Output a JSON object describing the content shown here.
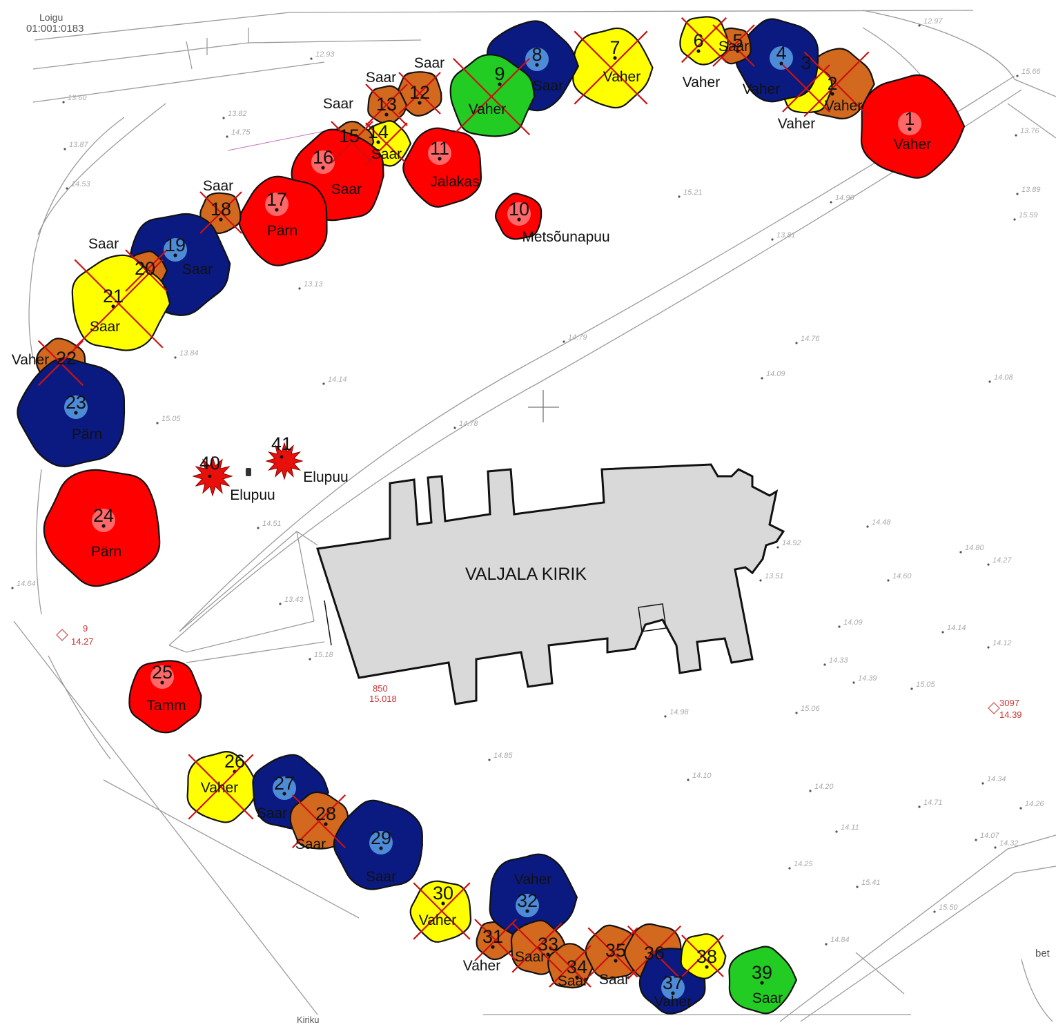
{
  "colors": {
    "red": "#ff0000",
    "blue": "#0a1a80",
    "yellow": "#ffff00",
    "green": "#22cc22",
    "brown": "#d2691e",
    "cross": "#cc1111",
    "church_fill": "#d9d9d9"
  },
  "plan": {
    "parcel_label": "Loigu",
    "parcel_id": "01:001:0183",
    "church_name": "VALJALA KIRIK",
    "road_label_bottom": "Kiriku",
    "road_label_right": "bet",
    "point_3097": "3097",
    "point_3097_h": "14.39",
    "point_9": "9",
    "point_9_h": "14.27",
    "point_850": "850",
    "point_850_h": "15.018"
  },
  "trees": [
    {
      "id": "1",
      "num": "1",
      "species": "Vaher",
      "color": "red",
      "crossed": false,
      "extra": []
    },
    {
      "id": "2",
      "num": "2",
      "species": "Vaher",
      "color": "brown",
      "crossed": true,
      "extra": []
    },
    {
      "id": "3",
      "num": "3",
      "species": "Vaher",
      "color": "yellow",
      "crossed": true,
      "extra": []
    },
    {
      "id": "4",
      "num": "4",
      "species": "Vaher",
      "color": "blue",
      "crossed": false,
      "extra": []
    },
    {
      "id": "5",
      "num": "5",
      "species": "Saar",
      "color": "brown",
      "crossed": true,
      "extra": []
    },
    {
      "id": "6",
      "num": "6",
      "species": "Vaher",
      "color": "yellow",
      "crossed": true,
      "extra": []
    },
    {
      "id": "7",
      "num": "7",
      "species": "Vaher",
      "color": "yellow",
      "crossed": true,
      "extra": []
    },
    {
      "id": "8",
      "num": "8",
      "species": "Saar",
      "color": "blue",
      "crossed": false,
      "extra": []
    },
    {
      "id": "9",
      "num": "9",
      "species": "Vaher",
      "color": "green",
      "crossed": true,
      "extra": []
    },
    {
      "id": "10",
      "num": "10",
      "species": "Metsõunapuu",
      "color": "red",
      "crossed": false,
      "extra": []
    },
    {
      "id": "11",
      "num": "11",
      "species": "Jalakas",
      "color": "red",
      "crossed": false,
      "extra": []
    },
    {
      "id": "12",
      "num": "12",
      "species": "Saar",
      "color": "brown",
      "crossed": true,
      "extra": []
    },
    {
      "id": "13",
      "num": "13",
      "species": "Saar",
      "color": "brown",
      "crossed": true,
      "extra": []
    },
    {
      "id": "14",
      "num": "14",
      "species": "Saar",
      "color": "yellow",
      "crossed": true,
      "extra": []
    },
    {
      "id": "15",
      "num": "15",
      "species": "Saar",
      "color": "brown",
      "crossed": true,
      "extra": []
    },
    {
      "id": "16",
      "num": "16",
      "species": "Saar",
      "color": "red",
      "crossed": false,
      "extra": []
    },
    {
      "id": "17",
      "num": "17",
      "species": "Pärn",
      "color": "red",
      "crossed": false,
      "extra": []
    },
    {
      "id": "18",
      "num": "18",
      "species": "Saar",
      "color": "brown",
      "crossed": true,
      "extra": []
    },
    {
      "id": "19",
      "num": "19",
      "species": "Saar",
      "color": "blue",
      "crossed": false,
      "extra": []
    },
    {
      "id": "20",
      "num": "20",
      "species": "Saar",
      "color": "brown",
      "crossed": true,
      "extra": []
    },
    {
      "id": "21",
      "num": "21",
      "species": "Saar",
      "color": "yellow",
      "crossed": true,
      "extra": []
    },
    {
      "id": "22",
      "num": "22",
      "species": "Vaher",
      "color": "brown",
      "crossed": true,
      "extra": []
    },
    {
      "id": "23",
      "num": "23",
      "species": "Pärn",
      "color": "blue",
      "crossed": false,
      "extra": []
    },
    {
      "id": "24",
      "num": "24",
      "species": "Pärn",
      "color": "red",
      "crossed": false,
      "extra": []
    },
    {
      "id": "25",
      "num": "25",
      "species": "Tamm",
      "color": "red",
      "crossed": false,
      "extra": []
    },
    {
      "id": "26",
      "num": "26",
      "species": "Vaher",
      "color": "yellow",
      "crossed": true,
      "extra": []
    },
    {
      "id": "27",
      "num": "27",
      "species": "Saar",
      "color": "blue",
      "crossed": false,
      "extra": []
    },
    {
      "id": "28",
      "num": "28",
      "species": "Saar",
      "color": "brown",
      "crossed": true,
      "extra": []
    },
    {
      "id": "29",
      "num": "29",
      "species": "Saar",
      "color": "blue",
      "crossed": false,
      "extra": []
    },
    {
      "id": "30",
      "num": "30",
      "species": "Vaher",
      "color": "yellow",
      "crossed": true,
      "extra": []
    },
    {
      "id": "31",
      "num": "31",
      "species": "Vaher",
      "color": "brown",
      "crossed": true,
      "extra": []
    },
    {
      "id": "32",
      "num": "32",
      "species": "Vaher",
      "color": "blue",
      "crossed": false,
      "extra": []
    },
    {
      "id": "33",
      "num": "33",
      "species": "Saar",
      "color": "brown",
      "crossed": true,
      "extra": []
    },
    {
      "id": "34",
      "num": "34",
      "species": "Saar",
      "color": "brown",
      "crossed": true,
      "extra": []
    },
    {
      "id": "35",
      "num": "35",
      "species": "Saar",
      "color": "brown",
      "crossed": true,
      "extra": []
    },
    {
      "id": "36",
      "num": "36",
      "species": "",
      "color": "brown",
      "crossed": true,
      "extra": []
    },
    {
      "id": "37",
      "num": "37",
      "species": "Vaher",
      "color": "blue",
      "crossed": false,
      "extra": []
    },
    {
      "id": "38",
      "num": "38",
      "species": "",
      "color": "yellow",
      "crossed": true,
      "extra": []
    },
    {
      "id": "39",
      "num": "39",
      "species": "Saar",
      "color": "green",
      "crossed": false,
      "extra": []
    }
  ],
  "stars": [
    {
      "num": "40",
      "species": "Elupuu"
    },
    {
      "num": "41",
      "species": "Elupuu"
    }
  ],
  "survey_heights": [
    "13.60",
    "13.82",
    "14.75",
    "13.87",
    "14.53",
    "15.66",
    "13.76",
    "13.89",
    "15.59",
    "13.81",
    "14.90",
    "15.21",
    "13.13",
    "14.76",
    "14.79",
    "14.09",
    "14.08",
    "14.14",
    "15.05",
    "14.78",
    "13.84",
    "14.51",
    "14.48",
    "14.80",
    "14.27",
    "14.92",
    "13.51",
    "14.60",
    "14.64",
    "13.43",
    "14.09",
    "14.12",
    "14.14",
    "15.18",
    "14.33",
    "14.39",
    "15.05",
    "15.06",
    "14.98",
    "14.85",
    "14.10",
    "14.20",
    "14.34",
    "14.71",
    "14.26",
    "14.11",
    "14.07",
    "14.25",
    "15.41",
    "15.50",
    "14.84",
    "14.32",
    "12.93",
    "12.97"
  ]
}
